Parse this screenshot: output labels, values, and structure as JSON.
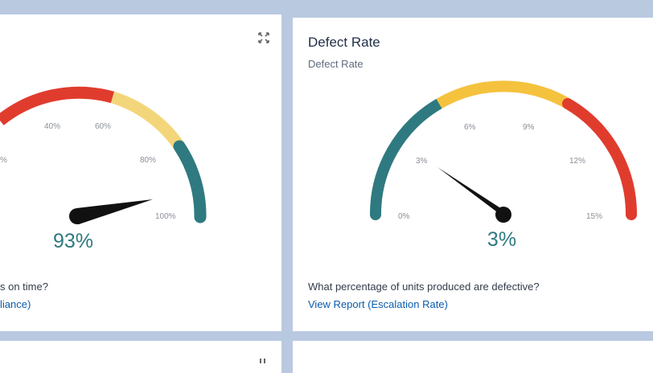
{
  "left_card": {
    "value_label": "93%",
    "question": "s on time?",
    "report_link": "liance)",
    "ticks": [
      "40%",
      "60%",
      "80%",
      "100%",
      "%"
    ],
    "value_pct": 93
  },
  "right_card": {
    "title": "Defect Rate",
    "subtitle": "Defect Rate",
    "value_label": "3%",
    "question": "What percentage of units produced are defective?",
    "report_link": "View Report (Escalation Rate)",
    "ticks": [
      "0%",
      "3%",
      "6%",
      "9%",
      "12%",
      "15%"
    ],
    "value": 3,
    "range": [
      0,
      15
    ]
  },
  "colors": {
    "teal": "#2e7a80",
    "yellow": "#f5c23e",
    "red": "#e03c2e",
    "light_yellow": "#f3d67a",
    "needle": "#111111",
    "link": "#0b5cad"
  },
  "icons": {
    "expand": "expand-icon",
    "drag": "drag-handle-icon"
  }
}
